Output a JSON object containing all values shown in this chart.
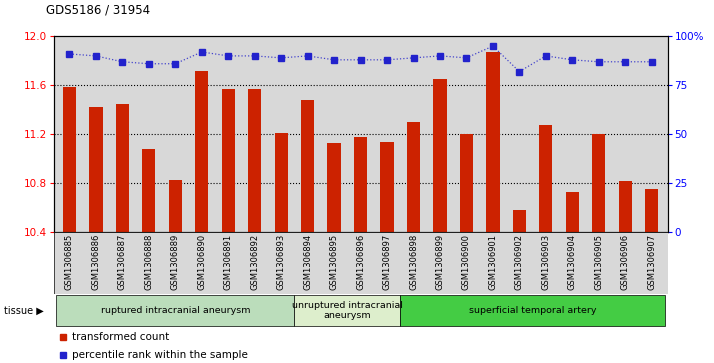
{
  "title": "GDS5186 / 31954",
  "samples": [
    "GSM1306885",
    "GSM1306886",
    "GSM1306887",
    "GSM1306888",
    "GSM1306889",
    "GSM1306890",
    "GSM1306891",
    "GSM1306892",
    "GSM1306893",
    "GSM1306894",
    "GSM1306895",
    "GSM1306896",
    "GSM1306897",
    "GSM1306898",
    "GSM1306899",
    "GSM1306900",
    "GSM1306901",
    "GSM1306902",
    "GSM1306903",
    "GSM1306904",
    "GSM1306905",
    "GSM1306906",
    "GSM1306907"
  ],
  "bar_values": [
    11.59,
    11.42,
    11.45,
    11.08,
    10.83,
    11.72,
    11.57,
    11.57,
    11.21,
    11.48,
    11.13,
    11.18,
    11.14,
    11.3,
    11.65,
    11.2,
    11.87,
    10.58,
    11.28,
    10.73,
    11.2,
    10.82,
    10.75
  ],
  "percentile_values": [
    91,
    90,
    87,
    86,
    86,
    92,
    90,
    90,
    89,
    90,
    88,
    88,
    88,
    89,
    90,
    89,
    95,
    82,
    90,
    88,
    87,
    87,
    87
  ],
  "ylim_left": [
    10.4,
    12.0
  ],
  "ylim_right": [
    0,
    100
  ],
  "yticks_left": [
    10.4,
    10.8,
    11.2,
    11.6,
    12.0
  ],
  "yticks_right": [
    0,
    25,
    50,
    75,
    100
  ],
  "bar_color": "#cc2200",
  "dot_color": "#2222cc",
  "background_color": "#d8d8d8",
  "tissue_groups": [
    {
      "label": "ruptured intracranial aneurysm",
      "start": 0,
      "end": 9,
      "color": "#bbddbb"
    },
    {
      "label": "unruptured intracranial\naneurysm",
      "start": 9,
      "end": 13,
      "color": "#ddeecc"
    },
    {
      "label": "superficial temporal artery",
      "start": 13,
      "end": 23,
      "color": "#44cc44"
    }
  ],
  "legend_items": [
    {
      "label": "transformed count",
      "color": "#cc2200"
    },
    {
      "label": "percentile rank within the sample",
      "color": "#2222cc"
    }
  ],
  "grid_color": "black",
  "dot_line_color": "#4444cc"
}
